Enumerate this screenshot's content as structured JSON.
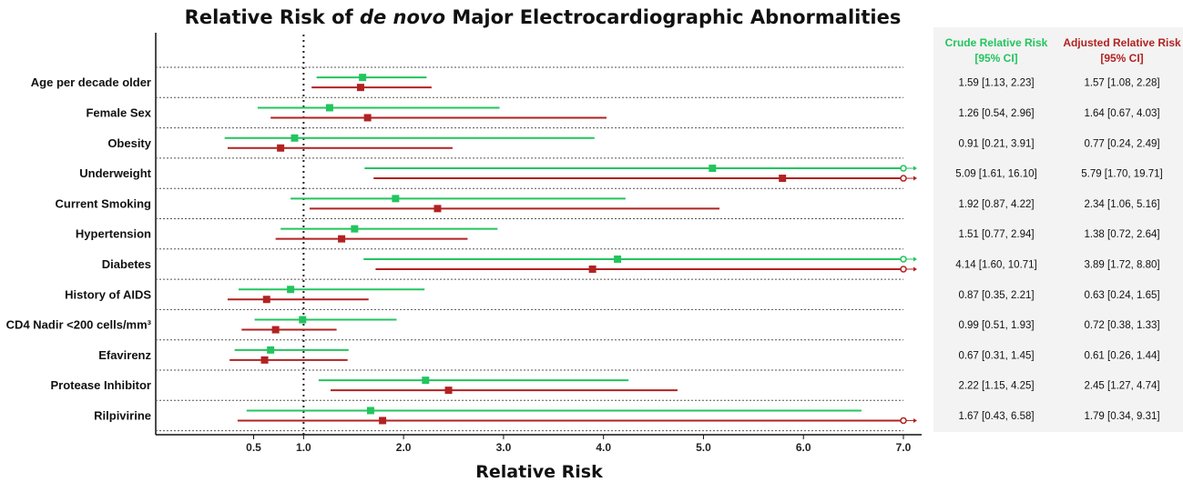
{
  "chart_data": {
    "type": "forest",
    "title_prefix": "Relative Risk of ",
    "title_italic": "de novo",
    "title_suffix": " Major Electrocardiographic Abnormalities",
    "xlabel": "Relative Risk",
    "xlim": [
      0,
      7.2
    ],
    "reference_line": 1.0,
    "xticks": [
      {
        "value": 0.5,
        "label": "0.5"
      },
      {
        "value": 1.0,
        "label": "1.0"
      },
      {
        "value": 2.0,
        "label": "2.0"
      },
      {
        "value": 3.0,
        "label": "3.0"
      },
      {
        "value": 4.0,
        "label": "4.0"
      },
      {
        "value": 5.0,
        "label": "5.0"
      },
      {
        "value": 6.0,
        "label": "6.0"
      },
      {
        "value": 7.0,
        "label": "7.0"
      }
    ],
    "colors": {
      "crude": "#22c55e",
      "adjusted": "#b22222"
    },
    "columns": {
      "crude_line1": "Crude Relative Risk",
      "crude_line2": "[95% CI]",
      "adjusted_line1": "Adjusted Relative Risk",
      "adjusted_line2": "[95% CI]"
    },
    "rows": [
      {
        "label": "Age per decade older",
        "crude": {
          "est": 1.59,
          "lo": 1.13,
          "hi": 2.23,
          "text": "1.59 [1.13, 2.23]"
        },
        "adjusted": {
          "est": 1.57,
          "lo": 1.08,
          "hi": 2.28,
          "text": "1.57 [1.08, 2.28]"
        }
      },
      {
        "label": "Female Sex",
        "crude": {
          "est": 1.26,
          "lo": 0.54,
          "hi": 2.96,
          "text": "1.26 [0.54, 2.96]"
        },
        "adjusted": {
          "est": 1.64,
          "lo": 0.67,
          "hi": 4.03,
          "text": "1.64 [0.67, 4.03]"
        }
      },
      {
        "label": "Obesity",
        "crude": {
          "est": 0.91,
          "lo": 0.21,
          "hi": 3.91,
          "text": "0.91 [0.21, 3.91]"
        },
        "adjusted": {
          "est": 0.77,
          "lo": 0.24,
          "hi": 2.49,
          "text": "0.77 [0.24, 2.49]"
        }
      },
      {
        "label": "Underweight",
        "crude": {
          "est": 5.09,
          "lo": 1.61,
          "hi": 16.1,
          "text": "5.09 [1.61, 16.10]"
        },
        "adjusted": {
          "est": 5.79,
          "lo": 1.7,
          "hi": 19.71,
          "text": "5.79 [1.70, 19.71]"
        }
      },
      {
        "label": "Current Smoking",
        "crude": {
          "est": 1.92,
          "lo": 0.87,
          "hi": 4.22,
          "text": "1.92 [0.87, 4.22]"
        },
        "adjusted": {
          "est": 2.34,
          "lo": 1.06,
          "hi": 5.16,
          "text": "2.34 [1.06, 5.16]"
        }
      },
      {
        "label": "Hypertension",
        "crude": {
          "est": 1.51,
          "lo": 0.77,
          "hi": 2.94,
          "text": "1.51 [0.77, 2.94]"
        },
        "adjusted": {
          "est": 1.38,
          "lo": 0.72,
          "hi": 2.64,
          "text": "1.38 [0.72, 2.64]"
        }
      },
      {
        "label": "Diabetes",
        "crude": {
          "est": 4.14,
          "lo": 1.6,
          "hi": 10.71,
          "text": "4.14 [1.60, 10.71]"
        },
        "adjusted": {
          "est": 3.89,
          "lo": 1.72,
          "hi": 8.8,
          "text": "3.89 [1.72, 8.80]"
        }
      },
      {
        "label": "History of AIDS",
        "crude": {
          "est": 0.87,
          "lo": 0.35,
          "hi": 2.21,
          "text": "0.87 [0.35, 2.21]"
        },
        "adjusted": {
          "est": 0.63,
          "lo": 0.24,
          "hi": 1.65,
          "text": "0.63 [0.24, 1.65]"
        }
      },
      {
        "label": "CD4 Nadir <200 cells/mm³",
        "crude": {
          "est": 0.99,
          "lo": 0.51,
          "hi": 1.93,
          "text": "0.99 [0.51, 1.93]"
        },
        "adjusted": {
          "est": 0.72,
          "lo": 0.38,
          "hi": 1.33,
          "text": "0.72 [0.38, 1.33]"
        }
      },
      {
        "label": "Efavirenz",
        "crude": {
          "est": 0.67,
          "lo": 0.31,
          "hi": 1.45,
          "text": "0.67 [0.31, 1.45]"
        },
        "adjusted": {
          "est": 0.61,
          "lo": 0.26,
          "hi": 1.44,
          "text": "0.61 [0.26, 1.44]"
        }
      },
      {
        "label": "Protease Inhibitor",
        "crude": {
          "est": 2.22,
          "lo": 1.15,
          "hi": 4.25,
          "text": "2.22 [1.15, 4.25]"
        },
        "adjusted": {
          "est": 2.45,
          "lo": 1.27,
          "hi": 4.74,
          "text": "2.45 [1.27, 4.74]"
        }
      },
      {
        "label": "Rilpivirine",
        "crude": {
          "est": 1.67,
          "lo": 0.43,
          "hi": 6.58,
          "text": "1.67 [0.43, 6.58]"
        },
        "adjusted": {
          "est": 1.79,
          "lo": 0.34,
          "hi": 9.31,
          "text": "1.79 [0.34, 9.31]"
        }
      }
    ]
  }
}
